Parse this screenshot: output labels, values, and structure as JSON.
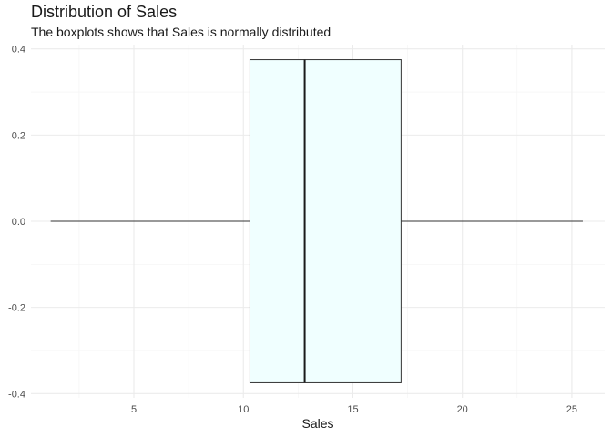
{
  "chart_data": {
    "type": "boxplot",
    "title": "Distribution of Sales",
    "subtitle": "The boxplots shows that Sales is normally distributed",
    "xlabel": "Sales",
    "ylabel": "",
    "xlim": [
      0.3,
      26.5
    ],
    "ylim": [
      -0.41,
      0.41
    ],
    "x_ticks": [
      5,
      10,
      15,
      20,
      25
    ],
    "y_ticks": [
      -0.4,
      -0.2,
      0.0,
      0.2,
      0.4
    ],
    "y_tick_labels": [
      "-0.4",
      "-0.2",
      "0.0",
      "0.2",
      "0.4"
    ],
    "box": {
      "min": 1.2,
      "q1": 10.3,
      "median": 12.8,
      "q3": 17.2,
      "max": 25.5,
      "y_center": 0.0,
      "half_width": 0.375
    },
    "colors": {
      "box_fill": "#F0FFFF",
      "box_stroke": "#333333",
      "grid_major": "#EBEBEB",
      "grid_minor": "#F3F3F3"
    },
    "grid": true
  }
}
